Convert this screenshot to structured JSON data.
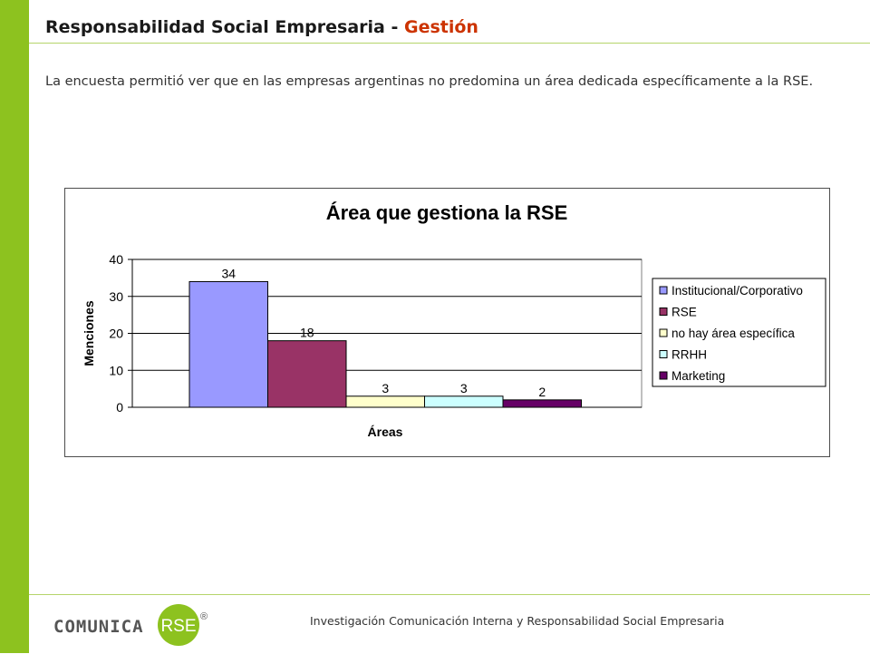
{
  "header": {
    "title_main": "Responsabilidad Social Empresaria - ",
    "title_accent": "Gestión"
  },
  "intro": {
    "text": "La encuesta permitió ver que en las empresas argentinas no predomina un área dedicada específicamente a la RSE."
  },
  "chart_data": {
    "type": "bar",
    "title": "Área que gestiona la RSE",
    "xlabel": "Áreas",
    "ylabel": "Menciones",
    "ylim": [
      0,
      40
    ],
    "yticks": [
      0,
      10,
      20,
      30,
      40
    ],
    "grid": true,
    "legend_position": "right",
    "series": [
      {
        "name": "Institucional/Corporativo",
        "value": 34,
        "color": "#9999ff"
      },
      {
        "name": "RSE",
        "value": 18,
        "color": "#993366"
      },
      {
        "name": "no hay área específica",
        "value": 3,
        "color": "#ffffcc"
      },
      {
        "name": "RRHH",
        "value": 3,
        "color": "#ccffff"
      },
      {
        "name": "Marketing",
        "value": 2,
        "color": "#660066"
      }
    ]
  },
  "footer": {
    "text": "Investigación  Comunicación  Interna  y Responsabilidad  Social  Empresaria",
    "logo_text_left": "COMUNICA",
    "logo_text_badge": "RSE",
    "logo_mark": "®"
  },
  "colors": {
    "green": "#8dc21f",
    "accent": "#cc3300",
    "rule": "#b5d56a"
  }
}
